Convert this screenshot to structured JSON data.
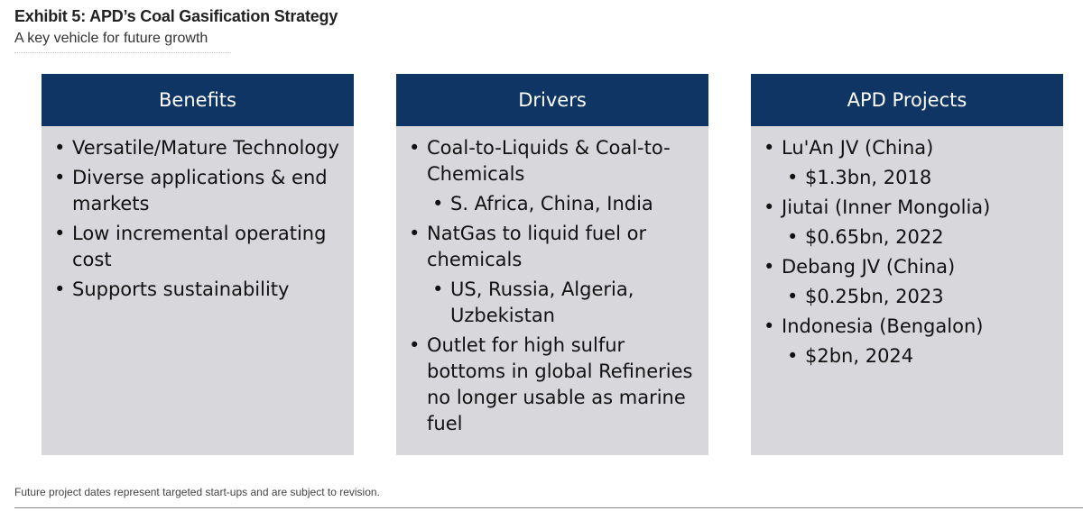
{
  "header": {
    "title": "Exhibit 5: APD’s Coal Gasification Strategy",
    "subtitle": "A key vehicle for future growth"
  },
  "panels": [
    {
      "heading": "Benefits",
      "items": [
        "Versatile/Mature Technology",
        "Diverse applications & end markets",
        "Low incremental operating cost",
        "Supports sustainability"
      ]
    },
    {
      "heading": "Drivers",
      "items": [
        "Coal-to-Liquids & Coal-to-Chemicals",
        "S. Africa, China, India",
        "NatGas to liquid fuel or chemicals",
        "US, Russia, Algeria, Uzbekistan",
        "Outlet for high sulfur bottoms in global Refineries no longer usable as marine fuel"
      ]
    },
    {
      "heading": "APD Projects",
      "items": [
        "Lu'An JV (China)",
        "$1.3bn, 2018",
        "Jiutai (Inner Mongolia)",
        "$0.65bn, 2022",
        "Debang JV (China)",
        "$0.25bn, 2023",
        "Indonesia (Bengalon)",
        "$2bn, 2024"
      ]
    }
  ],
  "footnote": "Future project dates represent targeted start-ups and are subject to revision."
}
